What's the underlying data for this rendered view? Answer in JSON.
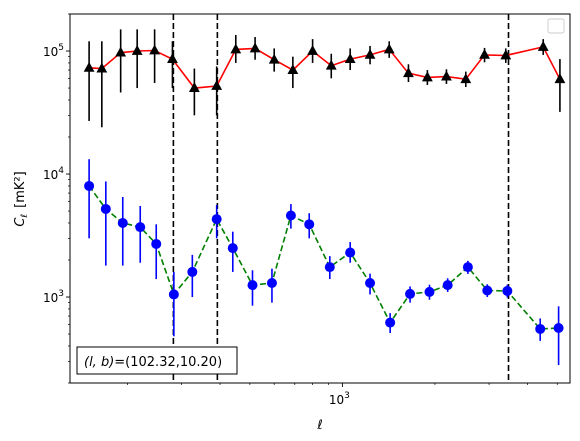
{
  "chart_data": {
    "type": "scatter",
    "title": "",
    "xlabel": "ℓ",
    "ylabel_main": "C",
    "ylabel_sub": "ℓ",
    "ylabel_units": "[mK²]",
    "xscale": "log",
    "yscale": "log",
    "xlim": [
      130,
      5500
    ],
    "ylim": [
      200,
      200000
    ],
    "x_ticks": [
      {
        "value": 1000,
        "base": "10",
        "exp": "3"
      }
    ],
    "y_ticks": [
      {
        "value": 1000,
        "base": "10",
        "exp": "3"
      },
      {
        "value": 10000,
        "base": "10",
        "exp": "4"
      },
      {
        "value": 100000,
        "base": "10",
        "exp": "5"
      }
    ],
    "legend": {
      "placement": "top-right",
      "entries": []
    },
    "vlines": [
      282,
      392,
      3470
    ],
    "annotation": {
      "text": "(l, b)=(102.32,10.20)",
      "math_part": "(l, b)",
      "rest_part": "=(102.32,10.20)",
      "placement": "bottom-left"
    },
    "series": [
      {
        "marker": "triangle",
        "color": "#000000",
        "line_color": "#ff0000",
        "line_style": "solid",
        "points": [
          {
            "x": 150,
            "y": 73000,
            "lo": 27000,
            "hi": 120000
          },
          {
            "x": 165,
            "y": 72000,
            "lo": 24000,
            "hi": 120000
          },
          {
            "x": 190,
            "y": 97000,
            "lo": 46000,
            "hi": 150000
          },
          {
            "x": 215,
            "y": 100000,
            "lo": 50000,
            "hi": 150000
          },
          {
            "x": 245,
            "y": 101000,
            "lo": 55000,
            "hi": 150000
          },
          {
            "x": 280,
            "y": 86000,
            "lo": 50000,
            "hi": 120000
          },
          {
            "x": 330,
            "y": 50000,
            "lo": 30000,
            "hi": 72000
          },
          {
            "x": 390,
            "y": 52000,
            "lo": 30000,
            "hi": 75000
          },
          {
            "x": 450,
            "y": 103000,
            "lo": 80000,
            "hi": 135000
          },
          {
            "x": 520,
            "y": 105000,
            "lo": 85000,
            "hi": 130000
          },
          {
            "x": 600,
            "y": 85000,
            "lo": 68000,
            "hi": 105000
          },
          {
            "x": 690,
            "y": 70000,
            "lo": 50000,
            "hi": 90000
          },
          {
            "x": 800,
            "y": 100000,
            "lo": 80000,
            "hi": 125000
          },
          {
            "x": 920,
            "y": 76000,
            "lo": 60000,
            "hi": 95000
          },
          {
            "x": 1060,
            "y": 86000,
            "lo": 70000,
            "hi": 105000
          },
          {
            "x": 1230,
            "y": 93000,
            "lo": 78000,
            "hi": 110000
          },
          {
            "x": 1420,
            "y": 103000,
            "lo": 88000,
            "hi": 120000
          },
          {
            "x": 1640,
            "y": 66000,
            "lo": 56000,
            "hi": 78000
          },
          {
            "x": 1890,
            "y": 61000,
            "lo": 53000,
            "hi": 70000
          },
          {
            "x": 2180,
            "y": 62000,
            "lo": 54000,
            "hi": 71000
          },
          {
            "x": 2520,
            "y": 59000,
            "lo": 51000,
            "hi": 68000
          },
          {
            "x": 2900,
            "y": 93000,
            "lo": 81000,
            "hi": 106000
          },
          {
            "x": 3400,
            "y": 92000,
            "lo": 80000,
            "hi": 105000
          },
          {
            "x": 4500,
            "y": 108000,
            "lo": 93000,
            "hi": 125000
          },
          {
            "x": 5100,
            "y": 59000,
            "lo": 32000,
            "hi": 86000
          }
        ]
      },
      {
        "marker": "circle",
        "color": "#0000ff",
        "line_color": "#008000",
        "line_style": "dashed",
        "points": [
          {
            "x": 150,
            "y": 8000,
            "lo": 3000,
            "hi": 13200
          },
          {
            "x": 170,
            "y": 5200,
            "lo": 1800,
            "hi": 8700
          },
          {
            "x": 193,
            "y": 4000,
            "lo": 1800,
            "hi": 6500
          },
          {
            "x": 220,
            "y": 3700,
            "lo": 1900,
            "hi": 5500
          },
          {
            "x": 248,
            "y": 2700,
            "lo": 1400,
            "hi": 3900
          },
          {
            "x": 283,
            "y": 1050,
            "lo": 480,
            "hi": 1600
          },
          {
            "x": 325,
            "y": 1600,
            "lo": 1000,
            "hi": 2200
          },
          {
            "x": 390,
            "y": 4300,
            "lo": 3000,
            "hi": 5600
          },
          {
            "x": 440,
            "y": 2500,
            "lo": 1600,
            "hi": 3400
          },
          {
            "x": 510,
            "y": 1250,
            "lo": 850,
            "hi": 1650
          },
          {
            "x": 590,
            "y": 1300,
            "lo": 900,
            "hi": 1700
          },
          {
            "x": 680,
            "y": 4600,
            "lo": 3600,
            "hi": 5700
          },
          {
            "x": 780,
            "y": 3900,
            "lo": 3000,
            "hi": 4800
          },
          {
            "x": 910,
            "y": 1750,
            "lo": 1400,
            "hi": 2150
          },
          {
            "x": 1060,
            "y": 2300,
            "lo": 1900,
            "hi": 2800
          },
          {
            "x": 1230,
            "y": 1300,
            "lo": 1050,
            "hi": 1550
          },
          {
            "x": 1430,
            "y": 620,
            "lo": 510,
            "hi": 740
          },
          {
            "x": 1660,
            "y": 1060,
            "lo": 900,
            "hi": 1220
          },
          {
            "x": 1920,
            "y": 1100,
            "lo": 950,
            "hi": 1260
          },
          {
            "x": 2200,
            "y": 1250,
            "lo": 1100,
            "hi": 1420
          },
          {
            "x": 2560,
            "y": 1750,
            "lo": 1540,
            "hi": 1970
          },
          {
            "x": 2960,
            "y": 1130,
            "lo": 1000,
            "hi": 1270
          },
          {
            "x": 3440,
            "y": 1120,
            "lo": 990,
            "hi": 1260
          },
          {
            "x": 4400,
            "y": 550,
            "lo": 440,
            "hi": 670
          },
          {
            "x": 5050,
            "y": 560,
            "lo": 280,
            "hi": 840
          }
        ]
      }
    ]
  }
}
